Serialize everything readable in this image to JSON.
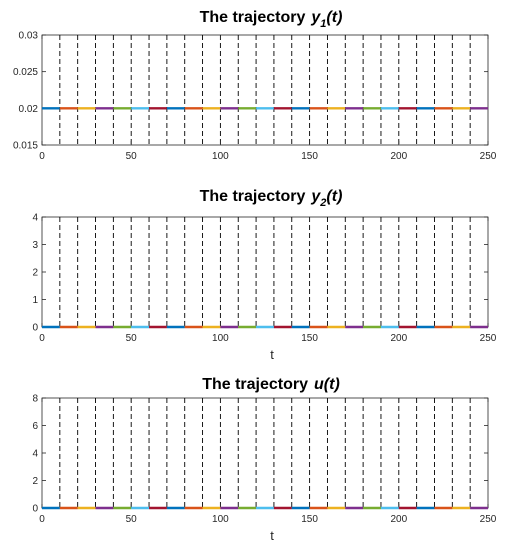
{
  "colors": [
    "#0072BD",
    "#D95319",
    "#EDB120",
    "#7E2F8E",
    "#77AC30",
    "#4DBEEE",
    "#A2142F"
  ],
  "chart_data": [
    {
      "type": "line",
      "title": "The trajectory",
      "title_var": "y",
      "title_sub": "1",
      "title_arg": "(t)",
      "xlabel": "",
      "ylabel": "",
      "xlim": [
        0,
        250
      ],
      "ylim": [
        0.015,
        0.03
      ],
      "xticks": [
        0,
        50,
        100,
        150,
        200,
        250
      ],
      "xtick_labels": [
        "0",
        "50",
        "100",
        "150",
        "200",
        "250"
      ],
      "yticks": [
        0.015,
        0.02,
        0.025,
        0.03
      ],
      "ytick_labels": [
        "0.015",
        "0.02",
        "0.025",
        "0.03"
      ],
      "switch_times": [
        10,
        20,
        30,
        40,
        50,
        60,
        70,
        80,
        90,
        100,
        110,
        120,
        130,
        140,
        150,
        160,
        170,
        180,
        190,
        200,
        210,
        220,
        230,
        240
      ],
      "series": [
        {
          "x": [
            0,
            10
          ],
          "y": [
            0.02,
            0.02
          ]
        },
        {
          "x": [
            10,
            20
          ],
          "y": [
            0.02,
            0.02
          ]
        },
        {
          "x": [
            20,
            30
          ],
          "y": [
            0.02,
            0.02
          ]
        },
        {
          "x": [
            30,
            40
          ],
          "y": [
            0.02,
            0.02
          ]
        },
        {
          "x": [
            40,
            50
          ],
          "y": [
            0.02,
            0.02
          ]
        },
        {
          "x": [
            50,
            60
          ],
          "y": [
            0.02,
            0.02
          ]
        },
        {
          "x": [
            60,
            70
          ],
          "y": [
            0.02,
            0.02
          ]
        },
        {
          "x": [
            70,
            80
          ],
          "y": [
            0.02,
            0.02
          ]
        },
        {
          "x": [
            80,
            90
          ],
          "y": [
            0.02,
            0.02
          ]
        },
        {
          "x": [
            90,
            100
          ],
          "y": [
            0.02,
            0.02
          ]
        },
        {
          "x": [
            100,
            110
          ],
          "y": [
            0.02,
            0.02
          ]
        },
        {
          "x": [
            110,
            120
          ],
          "y": [
            0.02,
            0.02
          ]
        },
        {
          "x": [
            120,
            130
          ],
          "y": [
            0.02,
            0.02
          ]
        },
        {
          "x": [
            130,
            140
          ],
          "y": [
            0.02,
            0.02
          ]
        },
        {
          "x": [
            140,
            150
          ],
          "y": [
            0.02,
            0.02
          ]
        },
        {
          "x": [
            150,
            160
          ],
          "y": [
            0.02,
            0.02
          ]
        },
        {
          "x": [
            160,
            170
          ],
          "y": [
            0.02,
            0.02
          ]
        },
        {
          "x": [
            170,
            180
          ],
          "y": [
            0.02,
            0.02
          ]
        },
        {
          "x": [
            180,
            190
          ],
          "y": [
            0.02,
            0.02
          ]
        },
        {
          "x": [
            190,
            200
          ],
          "y": [
            0.02,
            0.02
          ]
        },
        {
          "x": [
            200,
            210
          ],
          "y": [
            0.02,
            0.02
          ]
        },
        {
          "x": [
            210,
            220
          ],
          "y": [
            0.02,
            0.02
          ]
        },
        {
          "x": [
            220,
            230
          ],
          "y": [
            0.02,
            0.02
          ]
        },
        {
          "x": [
            230,
            240
          ],
          "y": [
            0.02,
            0.02
          ]
        },
        {
          "x": [
            240,
            250
          ],
          "y": [
            0.02,
            0.02
          ]
        }
      ]
    },
    {
      "type": "line",
      "title": "The trajectory",
      "title_var": "y",
      "title_sub": "2",
      "title_arg": "(t)",
      "xlabel": "t",
      "ylabel": "",
      "xlim": [
        0,
        250
      ],
      "ylim": [
        0,
        4
      ],
      "xticks": [
        0,
        50,
        100,
        150,
        200,
        250
      ],
      "xtick_labels": [
        "0",
        "50",
        "100",
        "150",
        "200",
        "250"
      ],
      "yticks": [
        0,
        1,
        2,
        3,
        4
      ],
      "ytick_labels": [
        "0",
        "1",
        "2",
        "3",
        "4"
      ],
      "switch_times": [
        10,
        20,
        30,
        40,
        50,
        60,
        70,
        80,
        90,
        100,
        110,
        120,
        130,
        140,
        150,
        160,
        170,
        180,
        190,
        200,
        210,
        220,
        230,
        240
      ],
      "series": [
        {
          "x": [
            0,
            10
          ],
          "y": [
            0,
            0
          ]
        },
        {
          "x": [
            10,
            20
          ],
          "y": [
            0,
            0
          ]
        },
        {
          "x": [
            20,
            30
          ],
          "y": [
            0,
            0
          ]
        },
        {
          "x": [
            30,
            40
          ],
          "y": [
            0,
            0
          ]
        },
        {
          "x": [
            40,
            50
          ],
          "y": [
            0,
            0
          ]
        },
        {
          "x": [
            50,
            60
          ],
          "y": [
            0,
            0
          ]
        },
        {
          "x": [
            60,
            70
          ],
          "y": [
            0,
            0
          ]
        },
        {
          "x": [
            70,
            80
          ],
          "y": [
            0,
            0
          ]
        },
        {
          "x": [
            80,
            90
          ],
          "y": [
            0,
            0
          ]
        },
        {
          "x": [
            90,
            100
          ],
          "y": [
            0,
            0
          ]
        },
        {
          "x": [
            100,
            110
          ],
          "y": [
            0,
            0
          ]
        },
        {
          "x": [
            110,
            120
          ],
          "y": [
            0,
            0
          ]
        },
        {
          "x": [
            120,
            130
          ],
          "y": [
            0,
            0
          ]
        },
        {
          "x": [
            130,
            140
          ],
          "y": [
            0,
            0
          ]
        },
        {
          "x": [
            140,
            150
          ],
          "y": [
            0,
            0
          ]
        },
        {
          "x": [
            150,
            160
          ],
          "y": [
            0,
            0
          ]
        },
        {
          "x": [
            160,
            170
          ],
          "y": [
            0,
            0
          ]
        },
        {
          "x": [
            170,
            180
          ],
          "y": [
            0,
            0
          ]
        },
        {
          "x": [
            180,
            190
          ],
          "y": [
            0,
            0
          ]
        },
        {
          "x": [
            190,
            200
          ],
          "y": [
            0,
            0
          ]
        },
        {
          "x": [
            200,
            210
          ],
          "y": [
            0,
            0
          ]
        },
        {
          "x": [
            210,
            220
          ],
          "y": [
            0,
            0
          ]
        },
        {
          "x": [
            220,
            230
          ],
          "y": [
            0,
            0
          ]
        },
        {
          "x": [
            230,
            240
          ],
          "y": [
            0,
            0
          ]
        },
        {
          "x": [
            240,
            250
          ],
          "y": [
            0,
            0
          ]
        }
      ]
    },
    {
      "type": "line",
      "title": "The trajectory",
      "title_var": "u",
      "title_sub": "",
      "title_arg": "(t)",
      "xlabel": "t",
      "ylabel": "",
      "xlim": [
        0,
        250
      ],
      "ylim": [
        0,
        8
      ],
      "xticks": [
        0,
        50,
        100,
        150,
        200,
        250
      ],
      "xtick_labels": [
        "0",
        "50",
        "100",
        "150",
        "200",
        "250"
      ],
      "yticks": [
        0,
        2,
        4,
        6,
        8
      ],
      "ytick_labels": [
        "0",
        "2",
        "4",
        "6",
        "8"
      ],
      "switch_times": [
        10,
        20,
        30,
        40,
        50,
        60,
        70,
        80,
        90,
        100,
        110,
        120,
        130,
        140,
        150,
        160,
        170,
        180,
        190,
        200,
        210,
        220,
        230,
        240
      ],
      "series": [
        {
          "x": [
            0,
            10
          ],
          "y": [
            0,
            0
          ]
        },
        {
          "x": [
            10,
            20
          ],
          "y": [
            0,
            0
          ]
        },
        {
          "x": [
            20,
            30
          ],
          "y": [
            0,
            0
          ]
        },
        {
          "x": [
            30,
            40
          ],
          "y": [
            0,
            0
          ]
        },
        {
          "x": [
            40,
            50
          ],
          "y": [
            0,
            0
          ]
        },
        {
          "x": [
            50,
            60
          ],
          "y": [
            0,
            0
          ]
        },
        {
          "x": [
            60,
            70
          ],
          "y": [
            0,
            0
          ]
        },
        {
          "x": [
            70,
            80
          ],
          "y": [
            0,
            0
          ]
        },
        {
          "x": [
            80,
            90
          ],
          "y": [
            0,
            0
          ]
        },
        {
          "x": [
            90,
            100
          ],
          "y": [
            0,
            0
          ]
        },
        {
          "x": [
            100,
            110
          ],
          "y": [
            0,
            0
          ]
        },
        {
          "x": [
            110,
            120
          ],
          "y": [
            0,
            0
          ]
        },
        {
          "x": [
            120,
            130
          ],
          "y": [
            0,
            0
          ]
        },
        {
          "x": [
            130,
            140
          ],
          "y": [
            0,
            0
          ]
        },
        {
          "x": [
            140,
            150
          ],
          "y": [
            0,
            0
          ]
        },
        {
          "x": [
            150,
            160
          ],
          "y": [
            0,
            0
          ]
        },
        {
          "x": [
            160,
            170
          ],
          "y": [
            0,
            0
          ]
        },
        {
          "x": [
            170,
            180
          ],
          "y": [
            0,
            0
          ]
        },
        {
          "x": [
            180,
            190
          ],
          "y": [
            0,
            0
          ]
        },
        {
          "x": [
            190,
            200
          ],
          "y": [
            0,
            0
          ]
        },
        {
          "x": [
            200,
            210
          ],
          "y": [
            0,
            0
          ]
        },
        {
          "x": [
            210,
            220
          ],
          "y": [
            0,
            0
          ]
        },
        {
          "x": [
            220,
            230
          ],
          "y": [
            0,
            0
          ]
        },
        {
          "x": [
            230,
            240
          ],
          "y": [
            0,
            0
          ]
        },
        {
          "x": [
            240,
            250
          ],
          "y": [
            0,
            0
          ]
        }
      ]
    }
  ]
}
